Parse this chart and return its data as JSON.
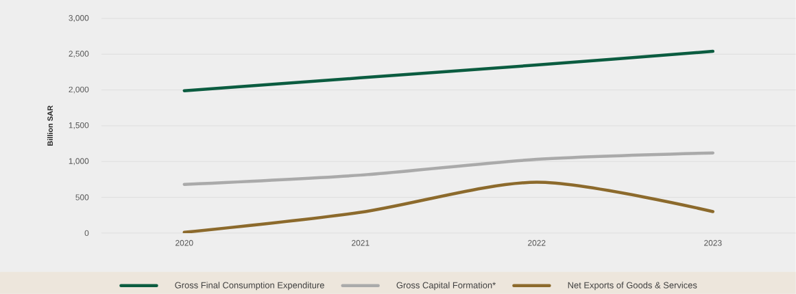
{
  "chart_data": {
    "type": "line",
    "ylabel": "Billion SAR",
    "categories": [
      "2020",
      "2021",
      "2022",
      "2023"
    ],
    "series": [
      {
        "name": "Gross Final Consumption Expenditure",
        "color": "#0b5c40",
        "values": [
          1990,
          2170,
          2350,
          2540
        ]
      },
      {
        "name": "Gross Capital Formation*",
        "color": "#aaaaaa",
        "values": [
          680,
          810,
          1030,
          1120
        ]
      },
      {
        "name": "Net Exports of Goods & Services",
        "color": "#8c6a2c",
        "values": [
          10,
          290,
          710,
          300
        ]
      }
    ],
    "ylim": [
      0,
      3000
    ],
    "yticks": [
      0,
      500,
      {
        "value": 1000,
        "label": "1,000"
      },
      {
        "value": 1500,
        "label": "1,500"
      },
      {
        "value": 2000,
        "label": "2,000"
      },
      {
        "value": 2500,
        "label": "2,500"
      },
      {
        "value": 3000,
        "label": "3,000"
      }
    ],
    "grid": "y",
    "legend": "bottom",
    "marker": "none",
    "line_style": "solid"
  }
}
